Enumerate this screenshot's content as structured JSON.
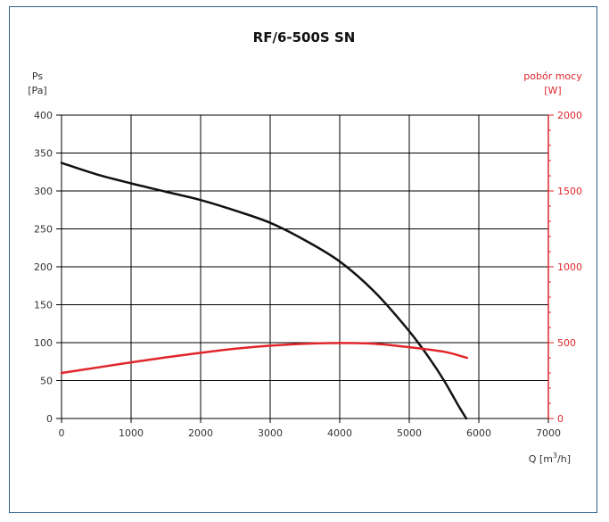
{
  "chart_data": {
    "type": "line",
    "title": "RF/6-500S SN",
    "y_left_label": [
      "Ps",
      "[Pa]"
    ],
    "y_right_label": [
      "pobór mocy",
      "[W]"
    ],
    "x_label": {
      "text": "Q [m",
      "sup": "3",
      "tail": "/h]"
    },
    "xlim": [
      0,
      7000
    ],
    "ylim": [
      0,
      400
    ],
    "y2lim": [
      0,
      2000
    ],
    "x_ticks": [
      "0",
      "1000",
      "2000",
      "3000",
      "4000",
      "5000",
      "6000",
      "7000"
    ],
    "y_ticks": [
      "0",
      "50",
      "100",
      "150",
      "200",
      "250",
      "300",
      "350",
      "400"
    ],
    "y2_ticks": [
      "0",
      "500",
      "1000",
      "1500",
      "2000"
    ],
    "grid": true,
    "colors": {
      "pressure": "#111111",
      "power": "#e0262b",
      "grid": "#000000",
      "frame": "#2f5f8f"
    },
    "series": [
      {
        "key": "pressure",
        "axis": "left",
        "x": [
          0,
          500,
          1000,
          1500,
          2000,
          2500,
          3000,
          3500,
          4000,
          4500,
          5000,
          5300,
          5500,
          5700,
          5820
        ],
        "y": [
          337,
          322,
          310,
          299,
          288,
          274,
          258,
          235,
          207,
          167,
          115,
          78,
          50,
          18,
          0
        ]
      },
      {
        "key": "power",
        "axis": "right",
        "x": [
          0,
          500,
          1000,
          1500,
          2000,
          2500,
          3000,
          3500,
          4000,
          4500,
          5000,
          5500,
          5830
        ],
        "y": [
          300,
          335,
          370,
          403,
          433,
          460,
          480,
          493,
          498,
          493,
          470,
          440,
          400
        ]
      }
    ]
  }
}
